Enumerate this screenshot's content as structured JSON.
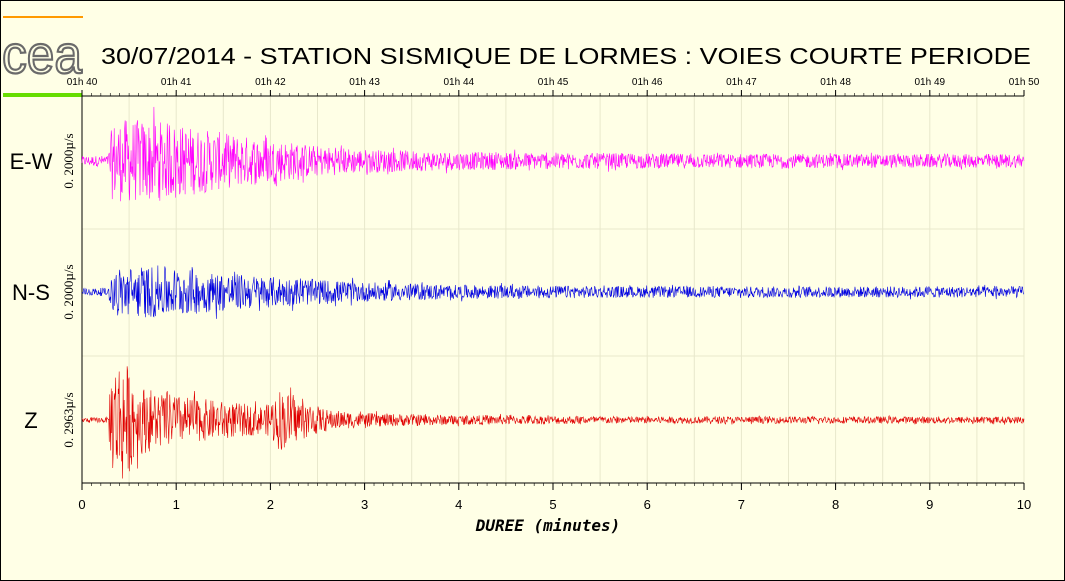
{
  "chart_data": {
    "type": "line",
    "title": "30/07/2014  -  STATION SISMIQUE DE LORMES : VOIES COURTE PERIODE",
    "xlabel": "DUREE (minutes)",
    "xlim": [
      0,
      10
    ],
    "x_ticks": [
      "0",
      "1",
      "2",
      "3",
      "4",
      "5",
      "6",
      "7",
      "8",
      "9",
      "10"
    ],
    "time_ticks": [
      "01h 40",
      "01h 41",
      "01h 42",
      "01h 43",
      "01h 44",
      "01h 45",
      "01h 46",
      "01h 47",
      "01h 48",
      "01h 49",
      "01h 50"
    ],
    "grid": true,
    "channels": [
      {
        "label": "E-W",
        "scale": "0. 2000µ/s",
        "color": "#ff00ff",
        "envelope": [
          [
            0,
            0.07
          ],
          [
            0.28,
            0.08
          ],
          [
            0.32,
            0.55
          ],
          [
            0.45,
            0.6
          ],
          [
            0.8,
            0.58
          ],
          [
            1.2,
            0.48
          ],
          [
            1.6,
            0.38
          ],
          [
            2.0,
            0.32
          ],
          [
            2.5,
            0.22
          ],
          [
            3.0,
            0.17
          ],
          [
            4.0,
            0.13
          ],
          [
            6.0,
            0.11
          ],
          [
            8.0,
            0.1
          ],
          [
            10.0,
            0.1
          ]
        ]
      },
      {
        "label": "N-S",
        "scale": "0. 2000µ/s",
        "color": "#0000e0",
        "envelope": [
          [
            0,
            0.05
          ],
          [
            0.28,
            0.06
          ],
          [
            0.35,
            0.35
          ],
          [
            0.8,
            0.38
          ],
          [
            1.3,
            0.3
          ],
          [
            2.0,
            0.22
          ],
          [
            3.0,
            0.14
          ],
          [
            4.0,
            0.1
          ],
          [
            6.0,
            0.08
          ],
          [
            10.0,
            0.08
          ]
        ]
      },
      {
        "label": "Z",
        "scale": "0. 2963µ/s",
        "color": "#e00000",
        "envelope": [
          [
            0,
            0.03
          ],
          [
            0.28,
            0.04
          ],
          [
            0.3,
            0.7
          ],
          [
            0.42,
            0.95
          ],
          [
            0.6,
            0.5
          ],
          [
            1.0,
            0.35
          ],
          [
            1.6,
            0.25
          ],
          [
            1.95,
            0.2
          ],
          [
            2.1,
            0.45
          ],
          [
            2.3,
            0.3
          ],
          [
            2.6,
            0.15
          ],
          [
            3.0,
            0.1
          ],
          [
            4.0,
            0.07
          ],
          [
            6.0,
            0.05
          ],
          [
            10.0,
            0.05
          ]
        ]
      }
    ]
  },
  "logo": {
    "text": "cea",
    "bar_top_color": "#ff9900",
    "bar_bottom_color": "#66dd00"
  }
}
